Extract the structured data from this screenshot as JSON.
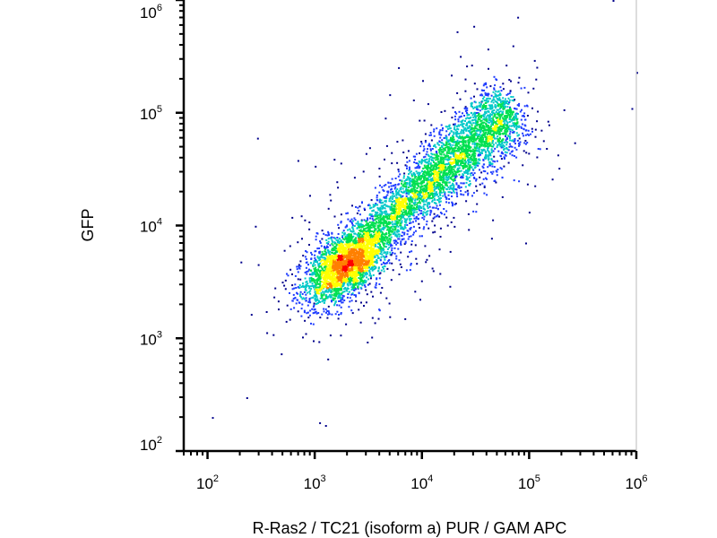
{
  "chart_data": {
    "type": "scatter",
    "title": "",
    "xlabel": "R-Ras2 / TC21 (isoform a) PUR / GAM APC",
    "ylabel": "GFP",
    "x_scale": "log",
    "y_scale": "log",
    "xlim": [
      60,
      1000000
    ],
    "ylim": [
      100,
      1000000
    ],
    "x_ticks": [
      {
        "base": "10",
        "exp": "2",
        "value": 100
      },
      {
        "base": "10",
        "exp": "3",
        "value": 1000
      },
      {
        "base": "10",
        "exp": "4",
        "value": 10000
      },
      {
        "base": "10",
        "exp": "5",
        "value": 100000
      },
      {
        "base": "10",
        "exp": "6",
        "value": 1000000
      }
    ],
    "y_ticks": [
      {
        "base": "10",
        "exp": "2",
        "value": 100
      },
      {
        "base": "10",
        "exp": "3",
        "value": 1000
      },
      {
        "base": "10",
        "exp": "4",
        "value": 10000
      },
      {
        "base": "10",
        "exp": "5",
        "value": 100000
      },
      {
        "base": "10",
        "exp": "6",
        "value": 1000000
      }
    ],
    "grid": false,
    "legend": "none",
    "color_scale": [
      "#00008b",
      "#1e3cff",
      "#00c8c8",
      "#00e050",
      "#ffff00",
      "#ff8000",
      "#ff0000"
    ],
    "density_peak": {
      "x": 1900,
      "y": 4500
    },
    "outliers": [
      {
        "x": 110,
        "y": 200
      },
      {
        "x": 230,
        "y": 300
      },
      {
        "x": 290,
        "y": 60000
      },
      {
        "x": 1100,
        "y": 180
      },
      {
        "x": 1250,
        "y": 170
      },
      {
        "x": 500000,
        "y": 1100000
      },
      {
        "x": 600000,
        "y": 1000000
      },
      {
        "x": 1000000,
        "y": 230000
      },
      {
        "x": 900000,
        "y": 110000
      }
    ]
  }
}
